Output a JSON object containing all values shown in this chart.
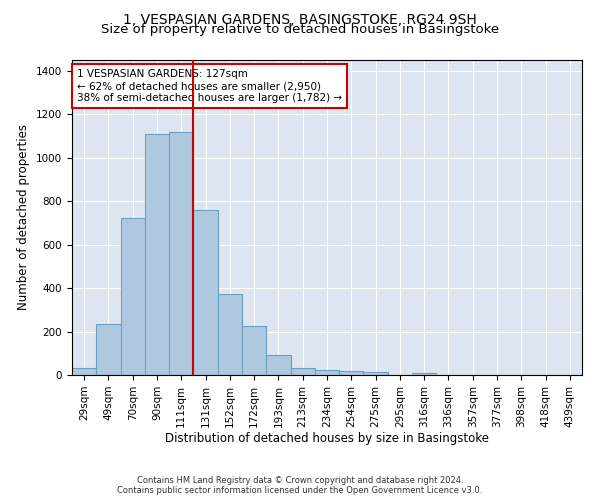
{
  "title": "1, VESPASIAN GARDENS, BASINGSTOKE, RG24 9SH",
  "subtitle": "Size of property relative to detached houses in Basingstoke",
  "xlabel": "Distribution of detached houses by size in Basingstoke",
  "ylabel": "Number of detached properties",
  "bar_labels": [
    "29sqm",
    "49sqm",
    "70sqm",
    "90sqm",
    "111sqm",
    "131sqm",
    "152sqm",
    "172sqm",
    "193sqm",
    "213sqm",
    "234sqm",
    "254sqm",
    "275sqm",
    "295sqm",
    "316sqm",
    "336sqm",
    "357sqm",
    "377sqm",
    "398sqm",
    "418sqm",
    "439sqm"
  ],
  "bar_values": [
    30,
    235,
    725,
    1110,
    1120,
    760,
    375,
    225,
    90,
    30,
    25,
    20,
    15,
    0,
    10,
    0,
    0,
    0,
    0,
    0,
    0
  ],
  "bar_color": "#aec8e0",
  "bar_edgecolor": "#6a9fc0",
  "bar_linewidth": 0.8,
  "vline_color": "#cc0000",
  "vline_linewidth": 1.5,
  "vline_x": 4.5,
  "annotation_text": "1 VESPASIAN GARDENS: 127sqm\n← 62% of detached houses are smaller (2,950)\n38% of semi-detached houses are larger (1,782) →",
  "annotation_box_color": "#cc0000",
  "ylim": [
    0,
    1450
  ],
  "yticks": [
    0,
    200,
    400,
    600,
    800,
    1000,
    1200,
    1400
  ],
  "background_color": "#dde6f0",
  "grid_color": "#ffffff",
  "footer": "Contains HM Land Registry data © Crown copyright and database right 2024.\nContains public sector information licensed under the Open Government Licence v3.0.",
  "title_fontsize": 10,
  "xlabel_fontsize": 8.5,
  "ylabel_fontsize": 8.5,
  "tick_fontsize": 7.5,
  "annot_fontsize": 7.5
}
